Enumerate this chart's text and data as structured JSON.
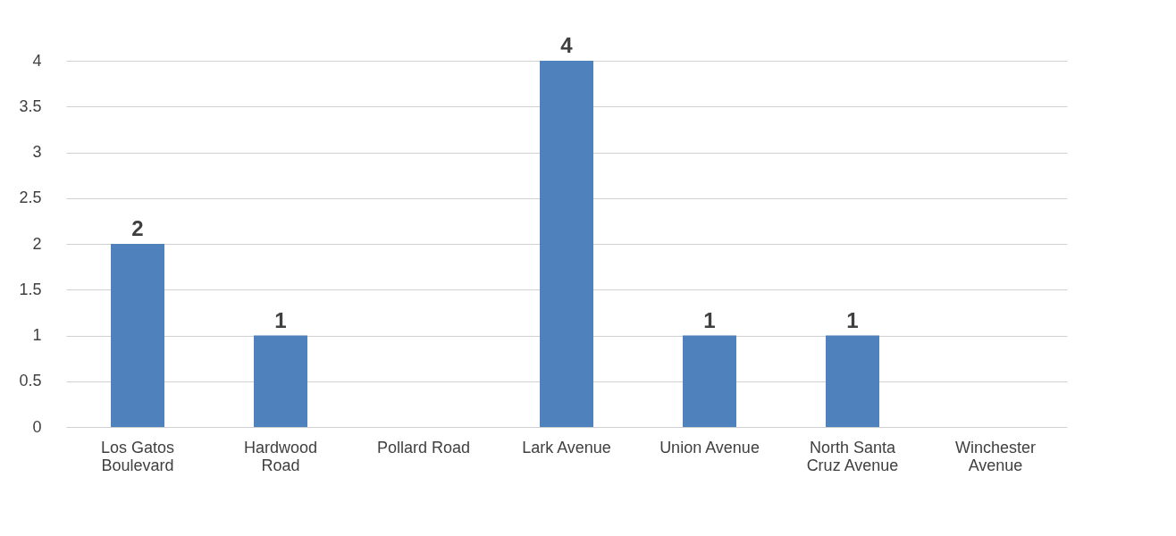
{
  "chart_data": {
    "type": "bar",
    "categories": [
      "Los Gatos Boulevard",
      "Hardwood Road",
      "Pollard Road",
      "Lark Avenue",
      "Union Avenue",
      "North Santa Cruz Avenue",
      "Winchester Avenue"
    ],
    "values": [
      2,
      1,
      0,
      4,
      1,
      1,
      0
    ],
    "value_labels": [
      "2",
      "1",
      null,
      "4",
      "1",
      "1",
      null
    ],
    "color": "#4f81bd",
    "ylim": [
      0,
      4
    ],
    "yticks": [
      0,
      0.5,
      1,
      1.5,
      2,
      2.5,
      3,
      3.5,
      4
    ],
    "grid": "y"
  }
}
